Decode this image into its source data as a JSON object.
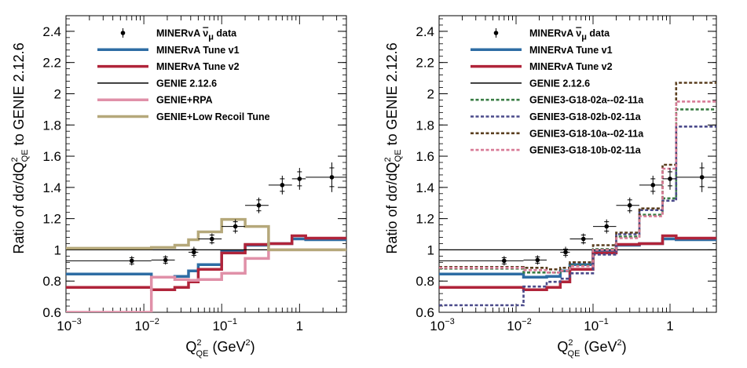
{
  "chart_data": [
    {
      "type": "line",
      "xscale": "log",
      "xlim": [
        0.001,
        4
      ],
      "ylim": [
        0.6,
        2.5
      ],
      "xlabel": "Q²QE (GeV²)",
      "xlabel_parts": {
        "main": "Q",
        "sup": "2",
        "sub": "QE",
        "unit": " (GeV",
        "unit_sup": "2",
        "close": ")"
      },
      "ylabel": "Ratio of dσ/dQ²QE to GENIE 2.12.6",
      "ylabel_parts": {
        "a": "Ratio of d",
        "sigma": "σ",
        "b": "/dQ",
        "sup": "2",
        "sub": "QE",
        "c": " to GENIE 2.12.6"
      },
      "x_ticks": [
        {
          "v": 0.001,
          "base": "10",
          "exp": "−3"
        },
        {
          "v": 0.01,
          "base": "10",
          "exp": "−2"
        },
        {
          "v": 0.1,
          "base": "10",
          "exp": "−1"
        },
        {
          "v": 1,
          "base": "1",
          "exp": ""
        }
      ],
      "y_ticks": [
        {
          "v": 0.6,
          "label": "0.6"
        },
        {
          "v": 0.8,
          "label": "0.8"
        },
        {
          "v": 1.0,
          "label": "1"
        },
        {
          "v": 1.2,
          "label": "1.2"
        },
        {
          "v": 1.4,
          "label": "1.4"
        },
        {
          "v": 1.6,
          "label": "1.6"
        },
        {
          "v": 1.8,
          "label": "1.8"
        },
        {
          "v": 2.0,
          "label": "2"
        },
        {
          "v": 2.2,
          "label": "2.2"
        },
        {
          "v": 2.4,
          "label": "2.4"
        }
      ],
      "bin_edges": [
        0.001,
        0.0125,
        0.025,
        0.0375,
        0.05,
        0.1,
        0.2,
        0.4,
        0.8,
        1.2,
        4.0
      ],
      "data_points": {
        "name": "MINERvA ν̄μ data",
        "legend_parts": {
          "a": "MINERvA ",
          "nu": "ν",
          "sub": "μ",
          "b": " data"
        },
        "x": [
          0.007,
          0.019,
          0.044,
          0.075,
          0.15,
          0.3,
          0.6,
          1.0,
          2.6
        ],
        "y": [
          0.93,
          0.935,
          0.985,
          1.07,
          1.15,
          1.285,
          1.415,
          1.455,
          1.465
        ],
        "xerr_low": [
          0.006,
          0.0065,
          0.0065,
          0.025,
          0.05,
          0.1,
          0.2,
          0.2,
          1.4
        ],
        "xerr_high": [
          0.0055,
          0.006,
          0.006,
          0.025,
          0.05,
          0.1,
          0.2,
          0.2,
          1.4
        ],
        "yerr_inner": [
          0.02,
          0.02,
          0.02,
          0.025,
          0.03,
          0.035,
          0.04,
          0.045,
          0.06
        ],
        "yerr_total": [
          0.03,
          0.03,
          0.035,
          0.035,
          0.045,
          0.05,
          0.06,
          0.07,
          0.095
        ]
      },
      "series": [
        {
          "name": "MINERvA Tune v1",
          "color": "#2e6da4",
          "dash": "",
          "values": [
            0.845,
            0.825,
            0.83,
            0.865,
            0.905,
            0.99,
            1.03,
            1.04,
            1.07,
            1.065
          ]
        },
        {
          "name": "MINERvA Tune v2",
          "color": "#b0243a",
          "dash": "",
          "values": [
            0.76,
            0.745,
            0.76,
            0.795,
            0.875,
            0.98,
            1.035,
            1.04,
            1.09,
            1.075
          ]
        },
        {
          "name": "GENIE 2.12.6",
          "color": "#000000",
          "dash": "",
          "thin": true,
          "values": [
            1.0,
            1.0,
            1.0,
            1.0,
            1.0,
            1.0,
            1.0,
            1.0,
            1.0,
            1.0
          ]
        },
        {
          "name": "GENIE+RPA",
          "color": "#e090a8",
          "dash": "",
          "values": [
            0.6,
            0.825,
            0.81,
            0.805,
            0.81,
            0.85,
            0.945,
            1.0,
            1.0,
            1.0
          ]
        },
        {
          "name": "GENIE+Low Recoil Tune",
          "color": "#b5a87a",
          "dash": "",
          "values": [
            1.01,
            1.015,
            1.03,
            1.065,
            1.115,
            1.195,
            1.15,
            1.0,
            1.0,
            1.0
          ]
        }
      ],
      "legend_location": "top-left"
    },
    {
      "type": "line",
      "xscale": "log",
      "xlim": [
        0.001,
        4
      ],
      "ylim": [
        0.6,
        2.5
      ],
      "xlabel": "Q²QE (GeV²)",
      "xlabel_parts": {
        "main": "Q",
        "sup": "2",
        "sub": "QE",
        "unit": " (GeV",
        "unit_sup": "2",
        "close": ")"
      },
      "ylabel": "Ratio of dσ/dQ²QE to GENIE 2.12.6",
      "ylabel_parts": {
        "a": "Ratio of d",
        "sigma": "σ",
        "b": "/dQ",
        "sup": "2",
        "sub": "QE",
        "c": " to GENIE 2.12.6"
      },
      "x_ticks": [
        {
          "v": 0.001,
          "base": "10",
          "exp": "−3"
        },
        {
          "v": 0.01,
          "base": "10",
          "exp": "−2"
        },
        {
          "v": 0.1,
          "base": "10",
          "exp": "−1"
        },
        {
          "v": 1,
          "base": "1",
          "exp": ""
        }
      ],
      "y_ticks": [
        {
          "v": 0.6,
          "label": "0.6"
        },
        {
          "v": 0.8,
          "label": "0.8"
        },
        {
          "v": 1.0,
          "label": "1"
        },
        {
          "v": 1.2,
          "label": "1.2"
        },
        {
          "v": 1.4,
          "label": "1.4"
        },
        {
          "v": 1.6,
          "label": "1.6"
        },
        {
          "v": 1.8,
          "label": "1.8"
        },
        {
          "v": 2.0,
          "label": "2"
        },
        {
          "v": 2.2,
          "label": "2.2"
        },
        {
          "v": 2.4,
          "label": "2.4"
        }
      ],
      "bin_edges": [
        0.001,
        0.0125,
        0.025,
        0.0375,
        0.05,
        0.1,
        0.2,
        0.4,
        0.8,
        1.2,
        4.0
      ],
      "data_points": {
        "name": "MINERvA ν̄μ data",
        "legend_parts": {
          "a": "MINERvA ",
          "nu": "ν",
          "sub": "μ",
          "b": " data"
        },
        "x": [
          0.007,
          0.019,
          0.044,
          0.075,
          0.15,
          0.3,
          0.6,
          1.0,
          2.6
        ],
        "y": [
          0.93,
          0.935,
          0.985,
          1.07,
          1.15,
          1.285,
          1.415,
          1.455,
          1.465
        ],
        "xerr_low": [
          0.006,
          0.0065,
          0.0065,
          0.025,
          0.05,
          0.1,
          0.2,
          0.2,
          1.4
        ],
        "xerr_high": [
          0.0055,
          0.006,
          0.006,
          0.025,
          0.05,
          0.1,
          0.2,
          0.2,
          1.4
        ],
        "yerr_inner": [
          0.02,
          0.02,
          0.02,
          0.025,
          0.03,
          0.035,
          0.04,
          0.045,
          0.06
        ],
        "yerr_total": [
          0.03,
          0.03,
          0.035,
          0.035,
          0.045,
          0.05,
          0.06,
          0.07,
          0.095
        ]
      },
      "series": [
        {
          "name": "MINERvA Tune v1",
          "color": "#2e6da4",
          "dash": "",
          "values": [
            0.845,
            0.825,
            0.83,
            0.865,
            0.905,
            0.99,
            1.03,
            1.04,
            1.07,
            1.065
          ]
        },
        {
          "name": "MINERvA Tune v2",
          "color": "#b0243a",
          "dash": "",
          "values": [
            0.76,
            0.745,
            0.76,
            0.795,
            0.875,
            0.98,
            1.035,
            1.04,
            1.09,
            1.075
          ]
        },
        {
          "name": "GENIE 2.12.6",
          "color": "#000000",
          "dash": "",
          "thin": true,
          "values": [
            1.0,
            1.0,
            1.0,
            1.0,
            1.0,
            1.0,
            1.0,
            1.0,
            1.0,
            1.0
          ]
        },
        {
          "name": "GENIE3-G18-02a--02-11a",
          "color": "#3a7d44",
          "dash": "dashed",
          "values": [
            0.88,
            0.855,
            0.855,
            0.865,
            0.9,
            1.005,
            1.085,
            1.225,
            1.33,
            1.9
          ]
        },
        {
          "name": "GENIE3-G18-02b-02-11a",
          "color": "#4a4a8a",
          "dash": "dashed",
          "values": [
            0.645,
            0.765,
            0.795,
            0.815,
            0.85,
            0.97,
            1.1,
            1.255,
            1.315,
            1.79
          ]
        },
        {
          "name": "GENIE3-G18-10a--02-11a",
          "color": "#5a3e1e",
          "dash": "dashed",
          "values": [
            0.89,
            0.885,
            0.875,
            0.885,
            0.92,
            1.03,
            1.11,
            1.265,
            1.545,
            2.07
          ]
        },
        {
          "name": "GENIE3-G18-10b-02-11a",
          "color": "#d87a96",
          "dash": "dashed",
          "values": [
            0.885,
            0.87,
            0.855,
            0.865,
            0.895,
            1.0,
            1.075,
            1.215,
            1.52,
            1.95
          ]
        }
      ],
      "legend_location": "top-left"
    }
  ]
}
